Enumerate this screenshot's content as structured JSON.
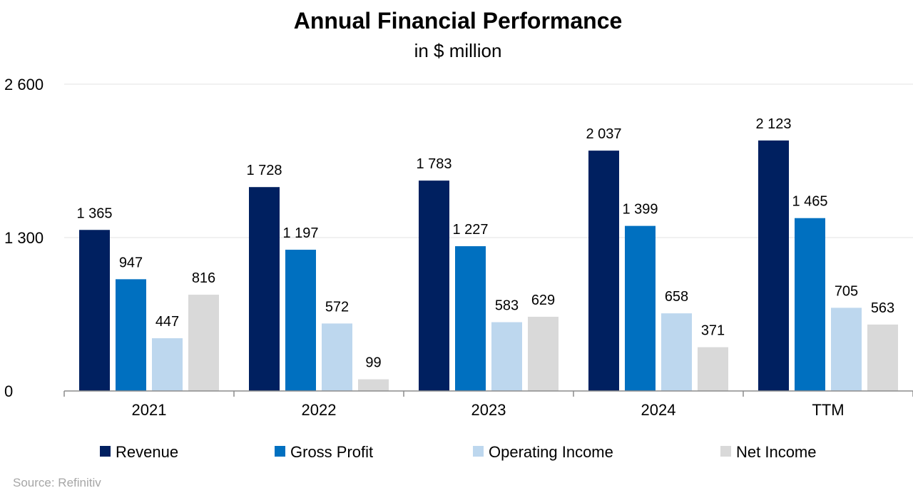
{
  "chart_data": {
    "type": "bar",
    "title": "Annual Financial Performance",
    "subtitle": "in $ million",
    "categories": [
      "2021",
      "2022",
      "2023",
      "2024",
      "TTM"
    ],
    "series": [
      {
        "name": "Revenue",
        "color": "#002060",
        "values": [
          1365,
          1728,
          1783,
          2037,
          2123
        ],
        "labels": [
          "1 365",
          "1 728",
          "1 783",
          "2 037",
          "2 123"
        ]
      },
      {
        "name": "Gross Profit",
        "color": "#0070c0",
        "values": [
          947,
          1197,
          1227,
          1399,
          1465
        ],
        "labels": [
          "947",
          "1 197",
          "1 227",
          "1 399",
          "1 465"
        ]
      },
      {
        "name": "Operating Income",
        "color": "#bdd7ee",
        "values": [
          447,
          572,
          583,
          658,
          705
        ],
        "labels": [
          "447",
          "572",
          "583",
          "658",
          "705"
        ]
      },
      {
        "name": "Net Income",
        "color": "#d9d9d9",
        "values": [
          816,
          99,
          629,
          371,
          563
        ],
        "labels": [
          "816",
          "99",
          "629",
          "371",
          "563"
        ]
      }
    ],
    "yticks": [
      0,
      1300,
      2600
    ],
    "ytick_labels": [
      "0",
      "1 300",
      "2 600"
    ],
    "ylim": [
      0,
      2600
    ],
    "xlabel": "",
    "ylabel": "",
    "grid": true,
    "legend_position": "bottom",
    "source": "Source: Refinitiv"
  }
}
